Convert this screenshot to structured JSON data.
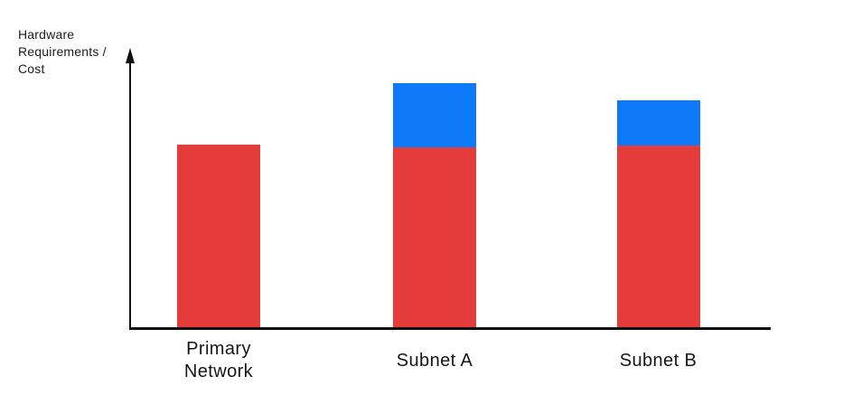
{
  "figure": {
    "background": "#FFFFFF",
    "axis_color": "#101010",
    "text_color": "#161616"
  },
  "chart_data": {
    "type": "bar",
    "stacked": true,
    "title": "",
    "xlabel": "",
    "ylabel": "Hardware Requirements / Cost",
    "categories": [
      "Primary Network",
      "Subnet A",
      "Subnet B"
    ],
    "series": [
      {
        "name": "red",
        "color": "#E43B3B",
        "values": [
          66.5,
          65.5,
          66
        ]
      },
      {
        "name": "blue",
        "color": "#0E7AFA",
        "values": [
          0,
          23,
          16.5
        ]
      }
    ],
    "ylim": [
      0,
      100
    ],
    "yticks": [],
    "xticks_shown_as": "category labels under axis",
    "grid": false,
    "legend": false,
    "notes": "No numeric scale shown; y-axis drawn with upward arrow; values are relative heights (percent of axis height). Red base segments are equal across all three bars; blue overhead segments appear only on Subnet A and Subnet B."
  }
}
